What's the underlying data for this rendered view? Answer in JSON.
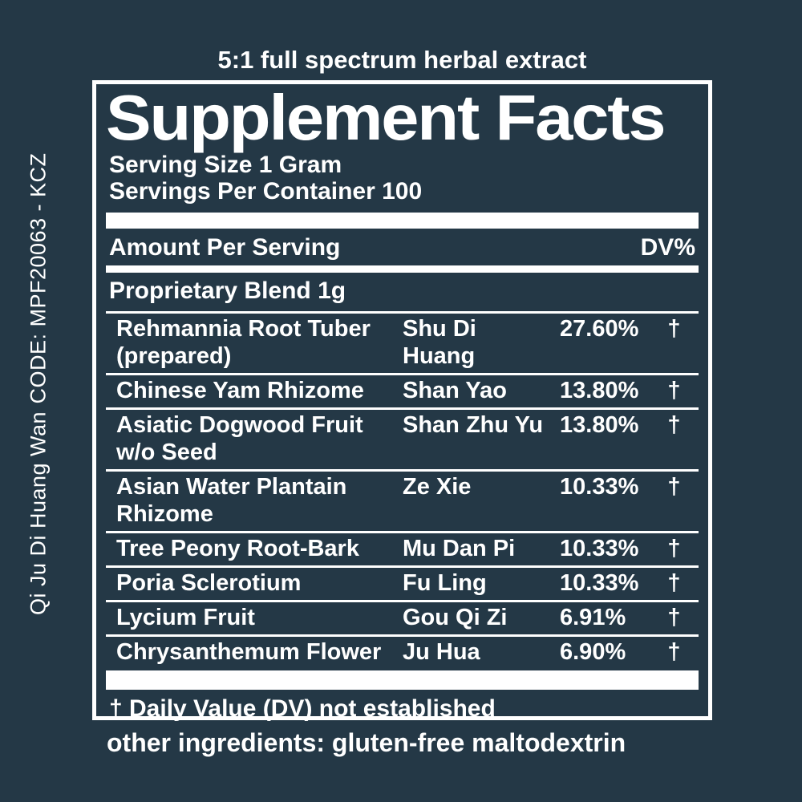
{
  "colors": {
    "background": "#243846",
    "text": "#ffffff"
  },
  "side": {
    "code": "CODE: MPF20063 - KCZ",
    "product": "Qi Ju Di Huang Wan"
  },
  "label": {
    "tagline": "5:1 full spectrum herbal extract",
    "title": "Supplement Facts",
    "serving_size": "Serving Size 1 Gram",
    "servings_per_container": "Servings Per Container 100",
    "amount_per_serving": "Amount Per Serving",
    "dv_header": "DV%",
    "blend": "Proprietary Blend 1g",
    "rows": [
      {
        "name": "Rehmannia Root Tuber\n(prepared)",
        "pinyin": "Shu Di\nHuang",
        "percent": "27.60%",
        "dv": "†"
      },
      {
        "name": "Chinese Yam Rhizome",
        "pinyin": "Shan Yao",
        "percent": "13.80%",
        "dv": "†"
      },
      {
        "name": "Asiatic Dogwood Fruit\nw/o Seed",
        "pinyin": "Shan Zhu Yu",
        "percent": "13.80%",
        "dv": "†"
      },
      {
        "name": "Asian Water Plantain\nRhizome",
        "pinyin": "Ze Xie",
        "percent": "10.33%",
        "dv": "†"
      },
      {
        "name": "Tree Peony Root-Bark",
        "pinyin": "Mu Dan Pi",
        "percent": "10.33%",
        "dv": "†"
      },
      {
        "name": "Poria Sclerotium",
        "pinyin": "Fu Ling",
        "percent": "10.33%",
        "dv": "†"
      },
      {
        "name": "Lycium Fruit",
        "pinyin": "Gou Qi Zi",
        "percent": "6.91%",
        "dv": "†"
      },
      {
        "name": "Chrysanthemum Flower",
        "pinyin": "Ju Hua",
        "percent": "6.90%",
        "dv": "†"
      }
    ],
    "footnote": "† Daily Value (DV) not established",
    "other_ingredients": "other ingredients: gluten-free maltodextrin"
  }
}
